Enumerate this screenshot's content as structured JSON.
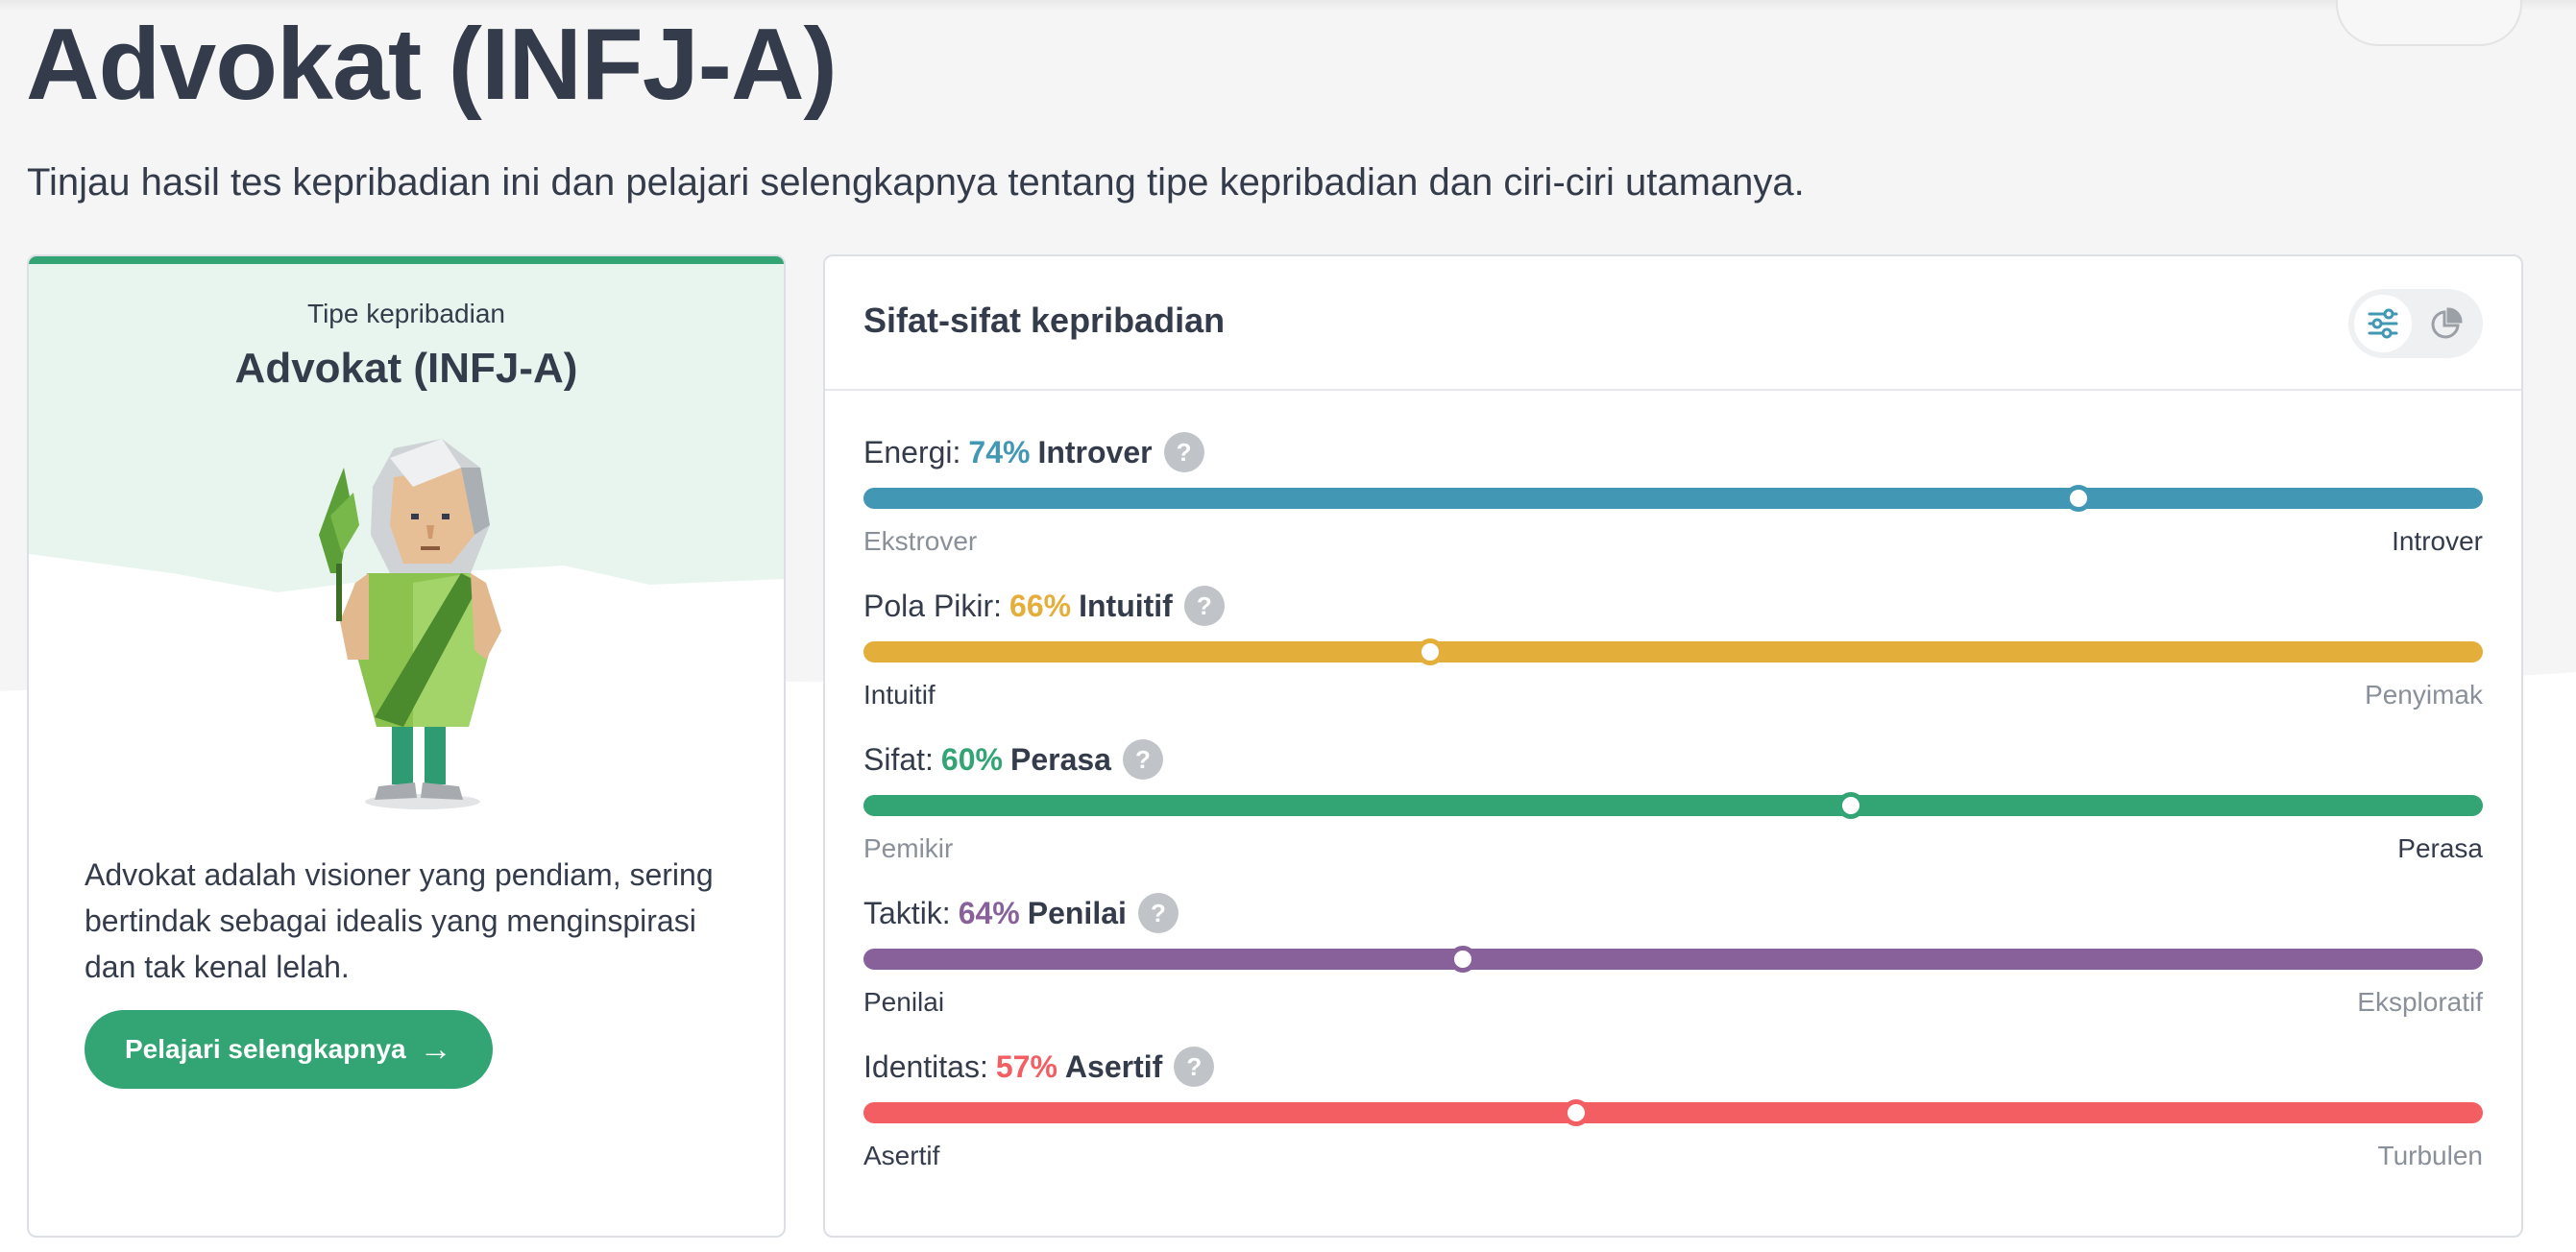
{
  "page": {
    "title": "Advokat (INFJ-A)",
    "subtitle": "Tinjau hasil tes kepribadian ini dan pelajari selengkapnya tentang tipe kepribadian dan ciri-ciri utamanya."
  },
  "type_card": {
    "label": "Tipe kepribadian",
    "name": "Advokat (INFJ-A)",
    "description": "Advokat adalah visioner yang pendiam, sering bertindak sebagai idealis yang menginspirasi dan tak kenal lelah.",
    "button_label": "Pelajari selengkapnya",
    "accent_color": "#33a474"
  },
  "traits_card": {
    "title": "Sifat-sifat kepribadian",
    "view_icons": [
      "sliders-icon",
      "pie-chart-icon"
    ],
    "traits": [
      {
        "name": "Energi:",
        "percent": "74%",
        "side": "Introver",
        "left": "Ekstrover",
        "right": "Introver",
        "position": 0.75,
        "color": "#4298b4",
        "active_end": "right"
      },
      {
        "name": "Pola Pikir:",
        "percent": "66%",
        "side": "Intuitif",
        "left": "Intuitif",
        "right": "Penyimak",
        "position": 0.35,
        "color": "#e4ae3a",
        "active_end": "left"
      },
      {
        "name": "Sifat:",
        "percent": "60%",
        "side": "Perasa",
        "left": "Pemikir",
        "right": "Perasa",
        "position": 0.61,
        "color": "#33a474",
        "active_end": "right"
      },
      {
        "name": "Taktik:",
        "percent": "64%",
        "side": "Penilai",
        "left": "Penilai",
        "right": "Eksploratif",
        "position": 0.37,
        "color": "#88619a",
        "active_end": "left"
      },
      {
        "name": "Identitas:",
        "percent": "57%",
        "side": "Asertif",
        "left": "Asertif",
        "right": "Turbulen",
        "position": 0.44,
        "color": "#f25e62",
        "active_end": "left"
      }
    ]
  }
}
